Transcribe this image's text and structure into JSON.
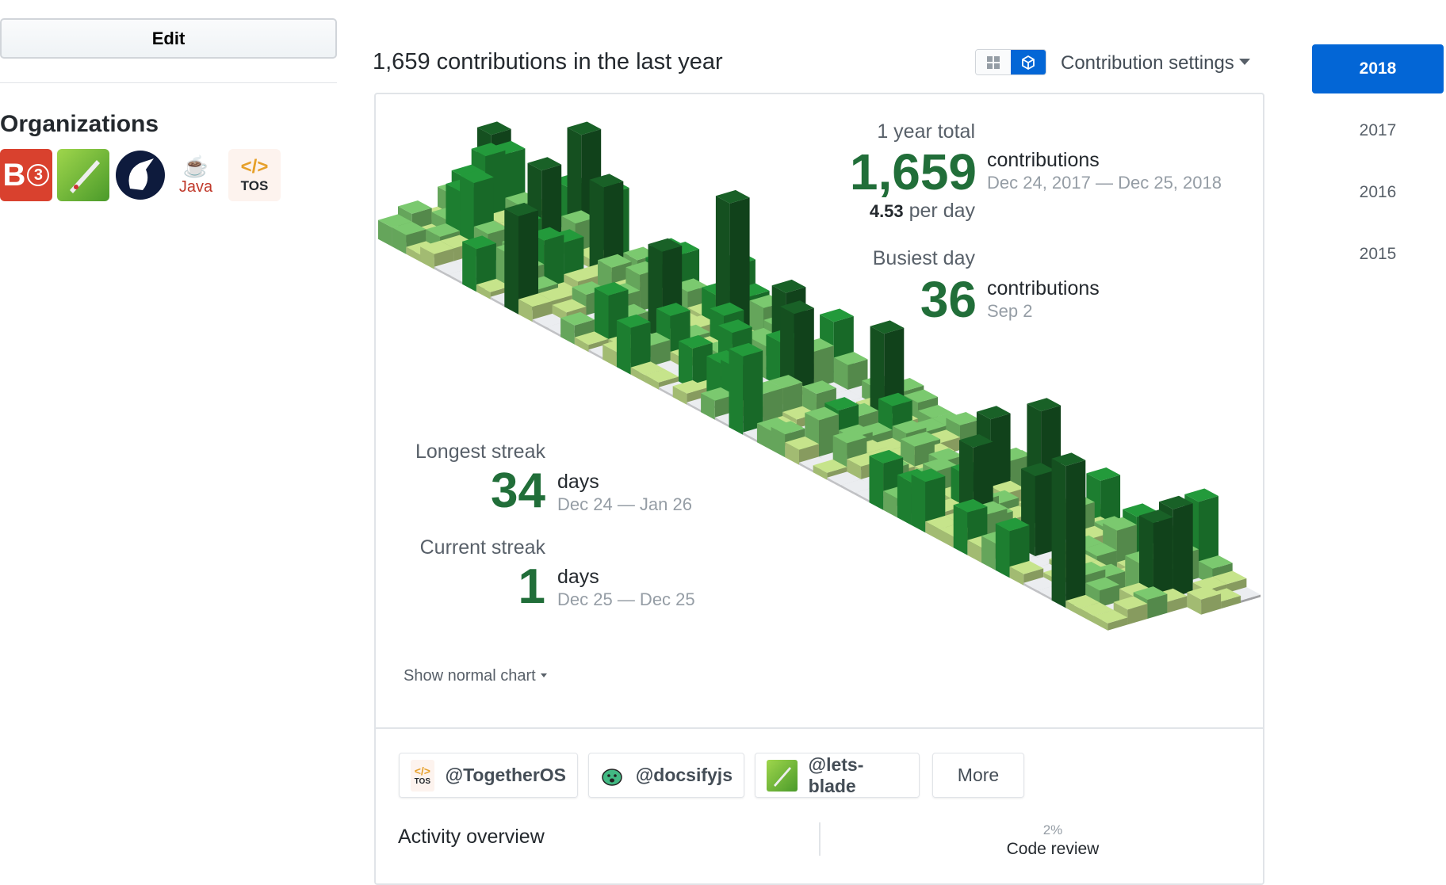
{
  "sidebar": {
    "edit_label": "Edit",
    "organizations_title": "Organizations",
    "orgs": [
      {
        "name": "B3",
        "icon": "b3-logo"
      },
      {
        "name": "lets-blade",
        "icon": "blade-logo"
      },
      {
        "name": "unicorn",
        "icon": "unicorn-logo"
      },
      {
        "name": "Java",
        "icon": "java-logo"
      },
      {
        "name": "TOS",
        "icon": "tos-logo"
      }
    ]
  },
  "header": {
    "title": "1,659 contributions in the last year",
    "settings_label": "Contribution settings",
    "view_toggle": [
      "grid-icon",
      "cube-icon"
    ]
  },
  "years": [
    "2018",
    "2017",
    "2016",
    "2015"
  ],
  "selected_year": "2018",
  "stats": {
    "total_label": "1 year total",
    "total": "1,659",
    "total_unit": "contributions",
    "total_range": "Dec 24, 2017 — Dec 25, 2018",
    "per_day_value": "4.53",
    "per_day_label": "per day",
    "busiest_label": "Busiest day",
    "busiest": "36",
    "busiest_unit": "contributions",
    "busiest_date": "Sep 2",
    "longest_label": "Longest streak",
    "longest": "34",
    "longest_unit": "days",
    "longest_range": "Dec 24 — Jan 26",
    "current_label": "Current streak",
    "current": "1",
    "current_unit": "days",
    "current_range": "Dec 25 — Dec 25"
  },
  "show_normal_label": "Show normal chart",
  "org_filters": [
    "@TogetherOS",
    "@docsifyjs",
    "@lets-blade"
  ],
  "more_label": "More",
  "activity": {
    "title": "Activity overview",
    "code_review_pct": "2%",
    "code_review_label": "Code review"
  },
  "colors": {
    "accent": "#0366d6",
    "green": "#216e39",
    "levels": [
      "#ebedf0",
      "#c6e48b",
      "#7bc96f",
      "#239a3b",
      "#196127"
    ]
  },
  "chart_data": {
    "type": "isometric-contribution-calendar",
    "total": 1659,
    "max_day": 36,
    "range": [
      "Dec 24, 2017",
      "Dec 25, 2018"
    ]
  }
}
